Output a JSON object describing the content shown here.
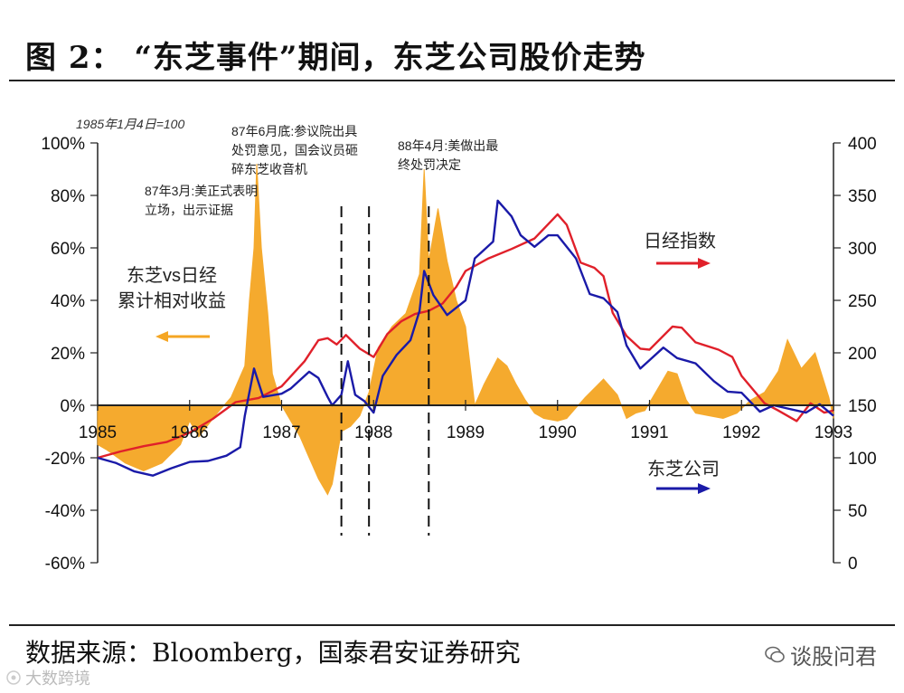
{
  "figure": {
    "title": "图 2： “东芝事件”期间，东芝公司股价走势",
    "source": "数据来源：Bloomberg，国泰君安证券研究",
    "watermark_right": "谈股问君",
    "watermark_left": "大数跨境"
  },
  "chart_data": {
    "type": "line",
    "base_note": "1985年1月4日=100",
    "x": {
      "ticks": [
        "1985",
        "1986",
        "1987",
        "1988",
        "1989",
        "1990",
        "1991",
        "1992",
        "1993"
      ],
      "range": [
        1985.0,
        1993.0
      ]
    },
    "y_left": {
      "ticks": [
        "100%",
        "80%",
        "60%",
        "40%",
        "20%",
        "0%",
        "-20%",
        "-40%",
        "-60%"
      ],
      "range": [
        -60,
        100
      ]
    },
    "y_right": {
      "ticks": [
        "400",
        "350",
        "300",
        "250",
        "200",
        "150",
        "100",
        "50",
        "0"
      ],
      "range": [
        0,
        400
      ]
    },
    "colors": {
      "relative": "#f5a623",
      "nikkei": "#e0202a",
      "toshiba": "#1a1aa8"
    },
    "legend": {
      "relative": [
        "东芝vs日经",
        "累计相对收益"
      ],
      "nikkei": "日经指数",
      "toshiba": "东芝公司"
    },
    "events": [
      {
        "x": 1987.65,
        "lines": [
          "87年3月:美正式表明",
          "立场，出示证据"
        ]
      },
      {
        "x": 1987.95,
        "lines": [
          "87年6月底:参议院出具",
          "处罚意见，国会议员砸",
          "碎东芝收音机"
        ]
      },
      {
        "x": 1988.6,
        "lines": [
          "88年4月:美做出最",
          "终处罚决定"
        ]
      }
    ],
    "series": [
      {
        "name": "东芝vs日经",
        "axis": "left",
        "kind": "area",
        "points": [
          [
            1985.0,
            -15
          ],
          [
            1985.1,
            -17
          ],
          [
            1985.3,
            -22
          ],
          [
            1985.5,
            -25
          ],
          [
            1985.7,
            -22
          ],
          [
            1985.9,
            -15
          ],
          [
            1986.0,
            -6
          ],
          [
            1986.1,
            -12
          ],
          [
            1986.3,
            -3
          ],
          [
            1986.45,
            3
          ],
          [
            1986.6,
            15
          ],
          [
            1986.65,
            40
          ],
          [
            1986.7,
            60
          ],
          [
            1986.73,
            92
          ],
          [
            1986.78,
            60
          ],
          [
            1986.85,
            35
          ],
          [
            1986.9,
            12
          ],
          [
            1987.0,
            0
          ],
          [
            1987.1,
            -6
          ],
          [
            1987.2,
            -12
          ],
          [
            1987.3,
            -20
          ],
          [
            1987.4,
            -28
          ],
          [
            1987.5,
            -34
          ],
          [
            1987.55,
            -30
          ],
          [
            1987.6,
            -20
          ],
          [
            1987.65,
            -10
          ],
          [
            1987.75,
            -8
          ],
          [
            1987.85,
            -4
          ],
          [
            1987.95,
            5
          ],
          [
            1988.05,
            22
          ],
          [
            1988.2,
            30
          ],
          [
            1988.35,
            35
          ],
          [
            1988.5,
            50
          ],
          [
            1988.55,
            90
          ],
          [
            1988.6,
            55
          ],
          [
            1988.7,
            75
          ],
          [
            1988.8,
            55
          ],
          [
            1988.9,
            40
          ],
          [
            1989.0,
            30
          ],
          [
            1989.1,
            0
          ],
          [
            1989.2,
            8
          ],
          [
            1989.35,
            18
          ],
          [
            1989.45,
            15
          ],
          [
            1989.55,
            8
          ],
          [
            1989.65,
            2
          ],
          [
            1989.75,
            -3
          ],
          [
            1989.85,
            -5
          ],
          [
            1990.0,
            -6
          ],
          [
            1990.1,
            -5
          ],
          [
            1990.3,
            3
          ],
          [
            1990.5,
            10
          ],
          [
            1990.65,
            4
          ],
          [
            1990.75,
            -5
          ],
          [
            1990.85,
            -3
          ],
          [
            1990.95,
            -2
          ],
          [
            1991.0,
            1
          ],
          [
            1991.1,
            7
          ],
          [
            1991.2,
            13
          ],
          [
            1991.3,
            12
          ],
          [
            1991.4,
            2
          ],
          [
            1991.5,
            -3
          ],
          [
            1991.65,
            -4
          ],
          [
            1991.8,
            -5
          ],
          [
            1991.95,
            -3
          ],
          [
            1992.1,
            2
          ],
          [
            1992.25,
            5
          ],
          [
            1992.4,
            13
          ],
          [
            1992.5,
            25
          ],
          [
            1992.65,
            14
          ],
          [
            1992.8,
            20
          ],
          [
            1992.95,
            3
          ],
          [
            1993.0,
            -5
          ]
        ]
      },
      {
        "name": "日经指数",
        "axis": "right",
        "kind": "line",
        "points": [
          [
            1985.0,
            100
          ],
          [
            1985.25,
            106
          ],
          [
            1985.5,
            111
          ],
          [
            1985.75,
            115
          ],
          [
            1986.0,
            124
          ],
          [
            1986.25,
            137
          ],
          [
            1986.5,
            153
          ],
          [
            1986.75,
            157
          ],
          [
            1987.0,
            168
          ],
          [
            1987.25,
            192
          ],
          [
            1987.4,
            212
          ],
          [
            1987.5,
            214
          ],
          [
            1987.6,
            208
          ],
          [
            1987.7,
            217
          ],
          [
            1987.85,
            204
          ],
          [
            1988.0,
            196
          ],
          [
            1988.15,
            218
          ],
          [
            1988.3,
            230
          ],
          [
            1988.45,
            237
          ],
          [
            1988.6,
            240
          ],
          [
            1988.75,
            247
          ],
          [
            1988.9,
            263
          ],
          [
            1989.0,
            278
          ],
          [
            1989.25,
            290
          ],
          [
            1989.5,
            299
          ],
          [
            1989.75,
            309
          ],
          [
            1990.0,
            332
          ],
          [
            1990.1,
            322
          ],
          [
            1990.25,
            286
          ],
          [
            1990.4,
            281
          ],
          [
            1990.5,
            273
          ],
          [
            1990.6,
            238
          ],
          [
            1990.75,
            216
          ],
          [
            1990.9,
            204
          ],
          [
            1991.0,
            203
          ],
          [
            1991.25,
            225
          ],
          [
            1991.35,
            224
          ],
          [
            1991.5,
            210
          ],
          [
            1991.75,
            203
          ],
          [
            1991.9,
            196
          ],
          [
            1992.0,
            178
          ],
          [
            1992.25,
            152
          ],
          [
            1992.4,
            145
          ],
          [
            1992.6,
            135
          ],
          [
            1992.75,
            152
          ],
          [
            1992.9,
            143
          ],
          [
            1993.0,
            145
          ]
        ]
      },
      {
        "name": "东芝公司",
        "axis": "right",
        "kind": "line",
        "points": [
          [
            1985.0,
            100
          ],
          [
            1985.2,
            95
          ],
          [
            1985.4,
            87
          ],
          [
            1985.6,
            83
          ],
          [
            1985.8,
            90
          ],
          [
            1986.0,
            96
          ],
          [
            1986.2,
            97
          ],
          [
            1986.4,
            102
          ],
          [
            1986.55,
            110
          ],
          [
            1986.6,
            140
          ],
          [
            1986.7,
            185
          ],
          [
            1986.8,
            158
          ],
          [
            1987.0,
            161
          ],
          [
            1987.1,
            166
          ],
          [
            1987.3,
            182
          ],
          [
            1987.4,
            176
          ],
          [
            1987.5,
            158
          ],
          [
            1987.55,
            150
          ],
          [
            1987.65,
            160
          ],
          [
            1987.72,
            192
          ],
          [
            1987.8,
            160
          ],
          [
            1987.9,
            154
          ],
          [
            1988.0,
            143
          ],
          [
            1988.1,
            178
          ],
          [
            1988.25,
            198
          ],
          [
            1988.4,
            212
          ],
          [
            1988.5,
            240
          ],
          [
            1988.55,
            278
          ],
          [
            1988.65,
            255
          ],
          [
            1988.8,
            236
          ],
          [
            1988.9,
            243
          ],
          [
            1989.0,
            250
          ],
          [
            1989.1,
            290
          ],
          [
            1989.3,
            306
          ],
          [
            1989.35,
            345
          ],
          [
            1989.5,
            330
          ],
          [
            1989.6,
            312
          ],
          [
            1989.75,
            301
          ],
          [
            1989.9,
            312
          ],
          [
            1990.0,
            312
          ],
          [
            1990.2,
            290
          ],
          [
            1990.35,
            256
          ],
          [
            1990.5,
            252
          ],
          [
            1990.65,
            239
          ],
          [
            1990.75,
            207
          ],
          [
            1990.9,
            185
          ],
          [
            1991.0,
            193
          ],
          [
            1991.15,
            205
          ],
          [
            1991.3,
            195
          ],
          [
            1991.5,
            190
          ],
          [
            1991.7,
            173
          ],
          [
            1991.85,
            163
          ],
          [
            1992.0,
            162
          ],
          [
            1992.2,
            144
          ],
          [
            1992.35,
            150
          ],
          [
            1992.5,
            147
          ],
          [
            1992.7,
            143
          ],
          [
            1992.85,
            151
          ],
          [
            1993.0,
            140
          ]
        ]
      }
    ]
  }
}
